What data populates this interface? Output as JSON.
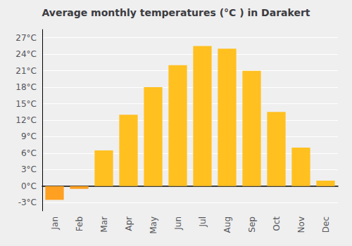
{
  "chart_data": {
    "type": "bar",
    "title": "Average monthly temperatures (°C ) in Darakert",
    "categories": [
      "Jan",
      "Feb",
      "Mar",
      "Apr",
      "May",
      "Jun",
      "Jul",
      "Aug",
      "Sep",
      "Oct",
      "Nov",
      "Dec"
    ],
    "values": [
      -2.5,
      -0.5,
      6.5,
      13.0,
      18.0,
      22.0,
      25.5,
      25.0,
      21.0,
      13.5,
      7.0,
      1.0
    ],
    "colors": [
      "#FFA020",
      "#FFA020",
      "#FFC020",
      "#FFC020",
      "#FFC020",
      "#FFC020",
      "#FFC020",
      "#FFC020",
      "#FFC020",
      "#FFC020",
      "#FFC020",
      "#FFC020"
    ],
    "ylim": [
      -4.5,
      28.5
    ],
    "yticks": [
      {
        "value": -3,
        "label": "-3°C"
      },
      {
        "value": 0,
        "label": "0°C"
      },
      {
        "value": 3,
        "label": "3°C"
      },
      {
        "value": 6,
        "label": "6°C"
      },
      {
        "value": 9,
        "label": "9°C"
      },
      {
        "value": 12,
        "label": "12°C"
      },
      {
        "value": 15,
        "label": "15°C"
      },
      {
        "value": 18,
        "label": "18°C"
      },
      {
        "value": 21,
        "label": "21°C"
      },
      {
        "value": 24,
        "label": "24°C"
      },
      {
        "value": 27,
        "label": "27°C"
      }
    ],
    "grid": true
  }
}
